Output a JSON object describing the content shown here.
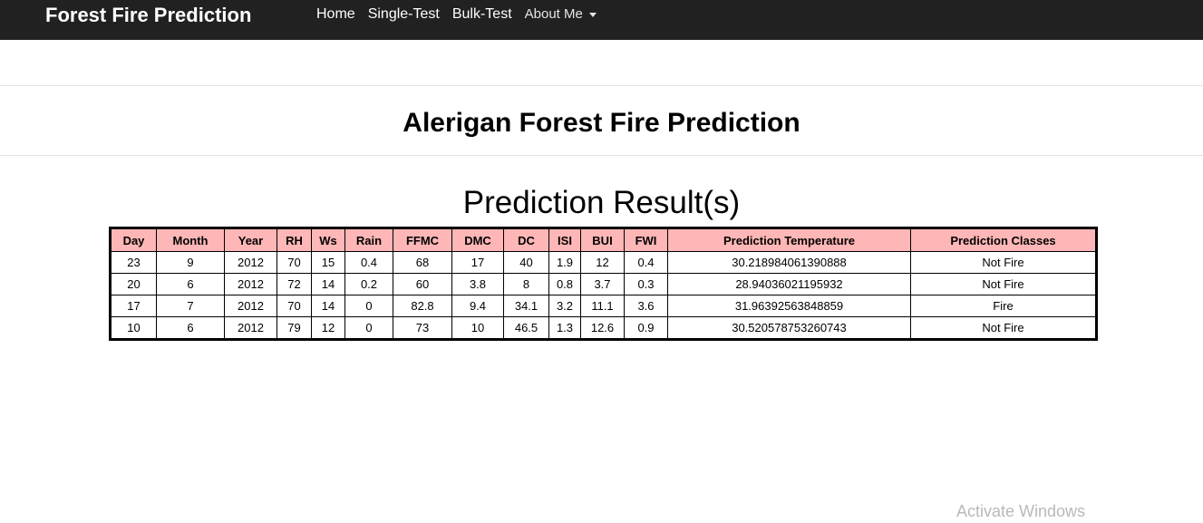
{
  "navbar": {
    "brand": "Forest Fire Prediction",
    "links": [
      "Home",
      "Single-Test",
      "Bulk-Test"
    ],
    "dropdown": "About Me"
  },
  "page": {
    "title": "Alerigan Forest Fire Prediction",
    "subtitle": "Prediction Result(s)"
  },
  "table": {
    "headers": [
      "Day",
      "Month",
      "Year",
      "RH",
      "Ws",
      "Rain",
      "FFMC",
      "DMC",
      "DC",
      "ISI",
      "BUI",
      "FWI",
      "Prediction Temperature",
      "Prediction Classes"
    ],
    "rows": [
      [
        "23",
        "9",
        "2012",
        "70",
        "15",
        "0.4",
        "68",
        "17",
        "40",
        "1.9",
        "12",
        "0.4",
        "30.218984061390888",
        "Not Fire"
      ],
      [
        "20",
        "6",
        "2012",
        "72",
        "14",
        "0.2",
        "60",
        "3.8",
        "8",
        "0.8",
        "3.7",
        "0.3",
        "28.94036021195932",
        "Not Fire"
      ],
      [
        "17",
        "7",
        "2012",
        "70",
        "14",
        "0",
        "82.8",
        "9.4",
        "34.1",
        "3.2",
        "11.1",
        "3.6",
        "31.96392563848859",
        "Fire"
      ],
      [
        "10",
        "6",
        "2012",
        "79",
        "12",
        "0",
        "73",
        "10",
        "46.5",
        "1.3",
        "12.6",
        "0.9",
        "30.520578753260743",
        "Not Fire"
      ]
    ]
  },
  "watermark": "Activate Windows",
  "colors": {
    "navbar": "#212121",
    "header_cell": "#ffb6b6"
  }
}
